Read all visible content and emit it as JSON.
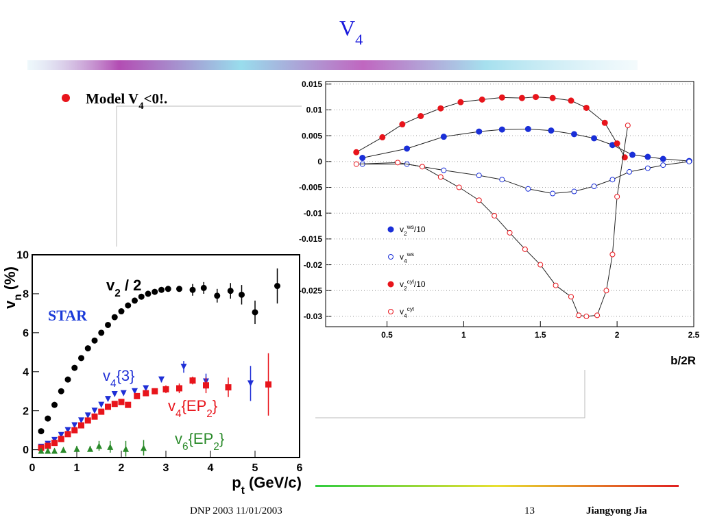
{
  "title": [
    {
      "t": "V"
    },
    {
      "t": "4",
      "s": "sub"
    }
  ],
  "bullet": [
    {
      "t": "Model V"
    },
    {
      "t": "4",
      "s": "sub"
    },
    {
      "t": "<0!."
    }
  ],
  "footer": {
    "left": "DNP 2003 11/01/2003",
    "page": "13",
    "author": "Jiangyong Jia"
  },
  "chart_data": [
    {
      "type": "scatter",
      "annotation": "STAR",
      "xlabel": [
        {
          "t": "p"
        },
        {
          "t": "t",
          "s": "sub"
        },
        {
          "t": " (GeV/c)"
        }
      ],
      "ylabel": [
        {
          "t": "v"
        },
        {
          "t": "n",
          "s": "sub"
        },
        {
          "t": " (%)"
        }
      ],
      "xlim": [
        0,
        6
      ],
      "ylim": [
        -0.4,
        10
      ],
      "xticks": [
        0,
        1,
        2,
        3,
        4,
        5,
        6
      ],
      "yticks": [
        0,
        2,
        4,
        6,
        8,
        10
      ],
      "grid": false,
      "series": [
        {
          "name": [
            {
              "t": "v"
            },
            {
              "t": "2",
              "s": "sub"
            },
            {
              "t": " / 2"
            }
          ],
          "color": "#000000",
          "marker": "circle",
          "x": [
            0.2,
            0.35,
            0.5,
            0.65,
            0.8,
            0.95,
            1.1,
            1.25,
            1.4,
            1.55,
            1.7,
            1.85,
            2.0,
            2.15,
            2.3,
            2.45,
            2.6,
            2.75,
            2.9,
            3.05,
            3.3,
            3.6,
            3.85,
            4.15,
            4.45,
            4.7,
            5.0,
            5.5
          ],
          "values": [
            0.95,
            1.6,
            2.3,
            3.0,
            3.6,
            4.2,
            4.7,
            5.2,
            5.6,
            6.0,
            6.4,
            6.8,
            7.1,
            7.4,
            7.65,
            7.85,
            8.0,
            8.1,
            8.2,
            8.25,
            8.25,
            8.2,
            8.3,
            7.9,
            8.15,
            7.95,
            7.05,
            8.4
          ],
          "errors": [
            0.1,
            0.1,
            0.1,
            0.1,
            0.1,
            0.1,
            0.1,
            0.1,
            0.1,
            0.1,
            0.1,
            0.1,
            0.1,
            0.1,
            0.1,
            0.1,
            0.1,
            0.1,
            0.1,
            0.1,
            0.15,
            0.3,
            0.3,
            0.35,
            0.4,
            0.5,
            0.6,
            0.9
          ]
        },
        {
          "name": [
            {
              "t": "v"
            },
            {
              "t": "4",
              "s": "sub"
            },
            {
              "t": "{3}"
            }
          ],
          "color": "#1f2fd6",
          "marker": "tri-down",
          "x": [
            0.2,
            0.35,
            0.5,
            0.65,
            0.8,
            0.95,
            1.1,
            1.25,
            1.4,
            1.55,
            1.7,
            1.85,
            2.05,
            2.3,
            2.55,
            2.9,
            3.4,
            3.9,
            4.9
          ],
          "values": [
            0.15,
            0.3,
            0.5,
            0.75,
            1.0,
            1.25,
            1.5,
            1.75,
            2.0,
            2.3,
            2.6,
            2.85,
            2.9,
            3.0,
            3.15,
            3.6,
            4.25,
            3.5,
            3.4
          ],
          "errors": [
            0.1,
            0.1,
            0.1,
            0.1,
            0.1,
            0.1,
            0.1,
            0.1,
            0.1,
            0.1,
            0.1,
            0.1,
            0.1,
            0.1,
            0.1,
            0.15,
            0.3,
            0.4,
            0.9
          ]
        },
        {
          "name": [
            {
              "t": "v"
            },
            {
              "t": "4",
              "s": "sub"
            },
            {
              "t": "{EP"
            },
            {
              "t": "2",
              "s": "sub"
            },
            {
              "t": "}"
            }
          ],
          "color": "#e8141b",
          "marker": "square",
          "x": [
            0.2,
            0.35,
            0.5,
            0.65,
            0.8,
            0.95,
            1.1,
            1.25,
            1.4,
            1.55,
            1.7,
            1.85,
            2.0,
            2.15,
            2.35,
            2.55,
            2.75,
            3.0,
            3.3,
            3.6,
            3.9,
            4.4,
            5.3
          ],
          "values": [
            0.1,
            0.2,
            0.35,
            0.55,
            0.8,
            1.0,
            1.25,
            1.5,
            1.7,
            1.95,
            2.2,
            2.35,
            2.45,
            2.3,
            2.75,
            2.9,
            3.0,
            3.1,
            3.15,
            3.55,
            3.3,
            3.2,
            3.35
          ],
          "errors": [
            0.1,
            0.1,
            0.1,
            0.1,
            0.1,
            0.1,
            0.1,
            0.1,
            0.1,
            0.1,
            0.1,
            0.1,
            0.1,
            0.1,
            0.1,
            0.1,
            0.15,
            0.2,
            0.25,
            0.2,
            0.4,
            0.5,
            1.6
          ]
        },
        {
          "name": [
            {
              "t": "v"
            },
            {
              "t": "6",
              "s": "sub"
            },
            {
              "t": "{EP"
            },
            {
              "t": "2",
              "s": "sub"
            },
            {
              "t": "}"
            }
          ],
          "color": "#2a8a2a",
          "marker": "tri-up",
          "x": [
            0.2,
            0.35,
            0.5,
            0.7,
            1.0,
            1.3,
            1.5,
            1.75,
            2.1,
            2.5
          ],
          "values": [
            -0.05,
            -0.05,
            -0.05,
            0,
            0.05,
            0.05,
            0.2,
            0.15,
            0.05,
            0.1
          ],
          "errors": [
            0.1,
            0.1,
            0.1,
            0.1,
            0.15,
            0.15,
            0.25,
            0.3,
            0.4,
            0.4
          ]
        }
      ]
    },
    {
      "type": "line",
      "xlabel": [
        {
          "t": "b/2R"
        }
      ],
      "xlim": [
        0.1,
        2.5
      ],
      "ylim": [
        -0.032,
        0.0155
      ],
      "xticks": [
        0.5,
        1,
        1.5,
        2,
        2.5
      ],
      "yticks": [
        0.015,
        0.01,
        0.005,
        0,
        -0.005,
        -0.01,
        -0.015,
        -0.02,
        -0.025,
        -0.03
      ],
      "grid": true,
      "series": [
        {
          "name": [
            {
              "t": "v"
            },
            {
              "t": "2",
              "s": "sub"
            },
            {
              "t": "ws",
              "s": "sup"
            },
            {
              "t": "/10"
            }
          ],
          "color": "#1a2fd8",
          "marker": "circle",
          "filled": true,
          "x": [
            0.34,
            0.63,
            0.87,
            1.1,
            1.25,
            1.42,
            1.57,
            1.72,
            1.85,
            1.97,
            2.1,
            2.2,
            2.3,
            2.47
          ],
          "values": [
            0.0007,
            0.0025,
            0.0048,
            0.0058,
            0.0062,
            0.0063,
            0.006,
            0.0053,
            0.0045,
            0.0032,
            0.0013,
            0.0009,
            0.0005,
            0.0001
          ]
        },
        {
          "name": [
            {
              "t": "v"
            },
            {
              "t": "4",
              "s": "sub"
            },
            {
              "t": "ws",
              "s": "sup"
            }
          ],
          "color": "#1a2fd8",
          "marker": "circle",
          "filled": false,
          "x": [
            0.34,
            0.63,
            0.87,
            1.1,
            1.25,
            1.42,
            1.58,
            1.72,
            1.85,
            1.97,
            2.08,
            2.2,
            2.3,
            2.47
          ],
          "values": [
            -0.0005,
            -0.0005,
            -0.0017,
            -0.0027,
            -0.0035,
            -0.0053,
            -0.0062,
            -0.0058,
            -0.0048,
            -0.0035,
            -0.002,
            -0.0013,
            -0.0007,
            0
          ]
        },
        {
          "name": [
            {
              "t": "v"
            },
            {
              "t": "2",
              "s": "sub"
            },
            {
              "t": "cyl",
              "s": "sup"
            },
            {
              "t": "/10"
            }
          ],
          "color": "#e8141b",
          "marker": "circle",
          "filled": true,
          "x": [
            0.3,
            0.47,
            0.6,
            0.72,
            0.85,
            0.98,
            1.12,
            1.25,
            1.38,
            1.47,
            1.58,
            1.7,
            1.8,
            1.92,
            2.0,
            2.05
          ],
          "values": [
            0.0018,
            0.0047,
            0.0072,
            0.0088,
            0.0103,
            0.0115,
            0.012,
            0.0124,
            0.0123,
            0.0125,
            0.0123,
            0.0118,
            0.0104,
            0.0075,
            0.0035,
            0.0008
          ]
        },
        {
          "name": [
            {
              "t": "v"
            },
            {
              "t": "4",
              "s": "sub"
            },
            {
              "t": "cyl",
              "s": "sup"
            }
          ],
          "color": "#e8141b",
          "marker": "circle",
          "filled": false,
          "x": [
            0.3,
            0.57,
            0.73,
            0.85,
            0.97,
            1.1,
            1.2,
            1.3,
            1.4,
            1.5,
            1.6,
            1.7,
            1.75,
            1.8,
            1.87,
            1.93,
            1.97,
            2.0,
            2.07
          ],
          "values": [
            -0.0005,
            -0.0002,
            -0.001,
            -0.003,
            -0.005,
            -0.0075,
            -0.0105,
            -0.0138,
            -0.017,
            -0.02,
            -0.024,
            -0.0262,
            -0.0298,
            -0.03,
            -0.0298,
            -0.025,
            -0.018,
            -0.0068,
            0.007
          ]
        }
      ]
    }
  ]
}
